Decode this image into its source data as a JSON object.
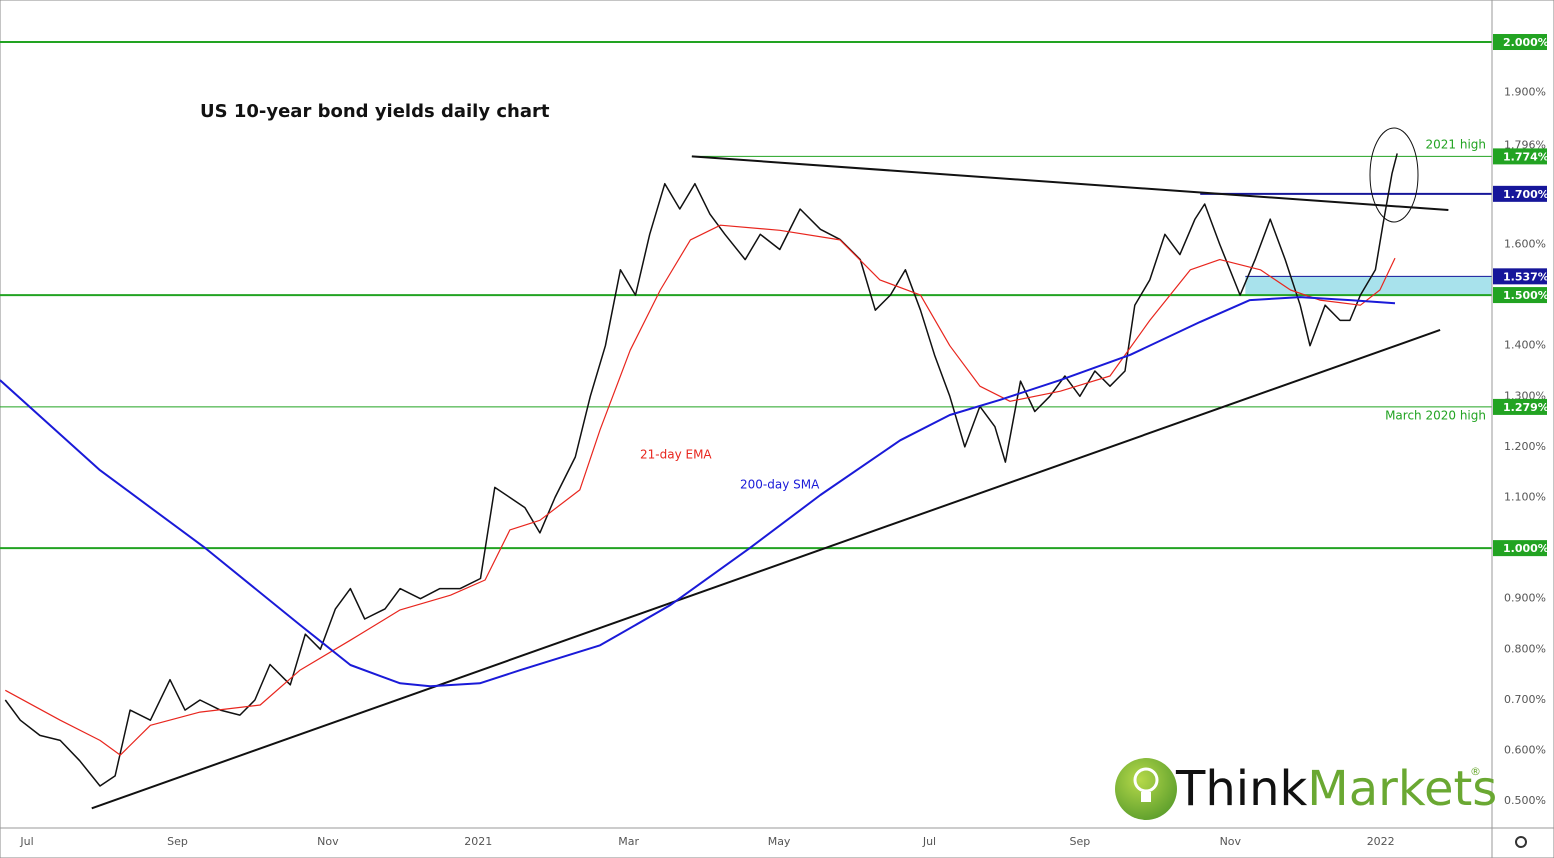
{
  "chart_data": {
    "type": "line",
    "title": "US 10-year bond yields daily chart",
    "xlim": [
      -0.36,
      19.48
    ],
    "xticks": [
      {
        "value": 0,
        "label": "Jul"
      },
      {
        "value": 2,
        "label": "Sep"
      },
      {
        "value": 4,
        "label": "Nov"
      },
      {
        "value": 6,
        "label": "2021"
      },
      {
        "value": 8,
        "label": "Mar"
      },
      {
        "value": 10,
        "label": "May"
      },
      {
        "value": 12,
        "label": "Jul"
      },
      {
        "value": 14,
        "label": "Sep"
      },
      {
        "value": 16,
        "label": "Nov"
      },
      {
        "value": 18,
        "label": "2022"
      }
    ],
    "ylim": [
      0.447,
      2.083
    ],
    "yticks": [
      {
        "value": 0.5,
        "label": "0.500%"
      },
      {
        "value": 0.6,
        "label": "0.600%"
      },
      {
        "value": 0.7,
        "label": "0.700%"
      },
      {
        "value": 0.8,
        "label": "0.800%"
      },
      {
        "value": 0.9,
        "label": "0.900%"
      },
      {
        "value": 1.1,
        "label": "1.100%"
      },
      {
        "value": 1.2,
        "label": "1.200%"
      },
      {
        "value": 1.3,
        "label": "1.300%"
      },
      {
        "value": 1.4,
        "label": "1.400%"
      },
      {
        "value": 1.6,
        "label": "1.600%"
      },
      {
        "value": 1.9,
        "label": "1.900%"
      }
    ],
    "last_price": {
      "value": 1.796,
      "label": "1.796%"
    },
    "series": [
      {
        "color": "#111111",
        "x": [
          -0.29,
          -0.09,
          0.17,
          0.44,
          0.7,
          0.97,
          1.17,
          1.37,
          1.64,
          1.9,
          2.1,
          2.3,
          2.57,
          2.83,
          3.03,
          3.23,
          3.5,
          3.7,
          3.9,
          4.1,
          4.3,
          4.49,
          4.76,
          4.96,
          5.23,
          5.49,
          5.76,
          6.03,
          6.22,
          6.42,
          6.62,
          6.82,
          7.02,
          7.29,
          7.49,
          7.69,
          7.89,
          8.09,
          8.28,
          8.48,
          8.68,
          8.88,
          9.08,
          9.28,
          9.55,
          9.75,
          10.01,
          10.28,
          10.55,
          10.81,
          11.08,
          11.28,
          11.48,
          11.68,
          11.88,
          12.07,
          12.27,
          12.47,
          12.67,
          12.87,
          13.01,
          13.21,
          13.4,
          13.6,
          13.8,
          14.0,
          14.2,
          14.4,
          14.6,
          14.73,
          14.93,
          15.13,
          15.33,
          15.53,
          15.66,
          15.86,
          16.13,
          16.33,
          16.53,
          16.73,
          16.93,
          17.06,
          17.26,
          17.46,
          17.59,
          17.73,
          17.93,
          18.03,
          18.15,
          18.22
        ],
        "values": [
          0.7,
          0.66,
          0.63,
          0.62,
          0.58,
          0.53,
          0.55,
          0.68,
          0.66,
          0.74,
          0.68,
          0.7,
          0.68,
          0.67,
          0.7,
          0.77,
          0.73,
          0.83,
          0.8,
          0.88,
          0.92,
          0.86,
          0.88,
          0.92,
          0.9,
          0.92,
          0.92,
          0.94,
          1.12,
          1.1,
          1.08,
          1.03,
          1.1,
          1.18,
          1.3,
          1.4,
          1.55,
          1.5,
          1.62,
          1.72,
          1.67,
          1.72,
          1.66,
          1.62,
          1.57,
          1.62,
          1.59,
          1.67,
          1.63,
          1.61,
          1.57,
          1.47,
          1.5,
          1.55,
          1.47,
          1.38,
          1.3,
          1.2,
          1.28,
          1.24,
          1.17,
          1.33,
          1.27,
          1.3,
          1.34,
          1.3,
          1.35,
          1.32,
          1.35,
          1.48,
          1.53,
          1.62,
          1.58,
          1.65,
          1.68,
          1.6,
          1.5,
          1.57,
          1.65,
          1.57,
          1.48,
          1.4,
          1.48,
          1.45,
          1.45,
          1.5,
          1.55,
          1.64,
          1.74,
          1.78
        ]
      },
      {
        "name": "21-day EMA",
        "color": "#e8261e",
        "x": [
          -0.29,
          0.44,
          0.97,
          1.24,
          1.64,
          2.3,
          3.1,
          3.63,
          4.3,
          4.96,
          5.63,
          6.09,
          6.42,
          6.82,
          7.35,
          7.62,
          8.02,
          8.42,
          8.82,
          9.22,
          10.01,
          10.81,
          11.34,
          11.88,
          12.27,
          12.67,
          13.07,
          13.74,
          14.4,
          14.93,
          15.47,
          15.86,
          16.4,
          16.8,
          17.19,
          17.73,
          17.99,
          18.19
        ],
        "values": [
          0.719,
          0.66,
          0.62,
          0.591,
          0.65,
          0.676,
          0.69,
          0.759,
          0.818,
          0.878,
          0.907,
          0.937,
          1.036,
          1.055,
          1.115,
          1.234,
          1.391,
          1.51,
          1.609,
          1.638,
          1.628,
          1.609,
          1.53,
          1.5,
          1.4,
          1.32,
          1.29,
          1.31,
          1.34,
          1.45,
          1.55,
          1.57,
          1.55,
          1.51,
          1.49,
          1.48,
          1.51,
          1.573
        ]
      },
      {
        "name": "200-day SMA",
        "color": "#1a1ad8",
        "x": [
          -0.36,
          0.97,
          2.37,
          3.63,
          4.3,
          4.96,
          5.36,
          6.02,
          6.56,
          7.62,
          8.55,
          9.61,
          10.55,
          11.61,
          12.27,
          12.94,
          13.74,
          14.67,
          15.6,
          16.26,
          16.93,
          17.59,
          18.19
        ],
        "values": [
          1.332,
          1.154,
          1.0,
          0.848,
          0.769,
          0.733,
          0.727,
          0.733,
          0.759,
          0.808,
          0.887,
          1.0,
          1.105,
          1.213,
          1.263,
          1.293,
          1.332,
          1.382,
          1.447,
          1.49,
          1.496,
          1.49,
          1.484
        ]
      }
    ],
    "levels": [
      {
        "value": 2.0,
        "label": "2.000%",
        "color": "#22a322",
        "x_start": -0.36,
        "weight": "bold"
      },
      {
        "value": 1.774,
        "label": "1.774%",
        "color": "#22a322",
        "x_start": 8.84,
        "weight": "thin"
      },
      {
        "value": 1.7,
        "label": "1.700%",
        "color": "#16169a",
        "x_start": 15.6,
        "weight": "bold"
      },
      {
        "value": 1.537,
        "label": "1.537%",
        "color": "#16169a",
        "x_start": 16.2,
        "weight": "thin"
      },
      {
        "value": 1.5,
        "label": "1.500%",
        "color": "#22a322",
        "x_start": -0.36,
        "weight": "bold"
      },
      {
        "value": 1.279,
        "label": "1.279%",
        "color": "#22a322",
        "x_start": -0.36,
        "weight": "thin"
      },
      {
        "value": 1.0,
        "label": "1.000%",
        "color": "#22a322",
        "x_start": -0.36,
        "weight": "bold"
      }
    ],
    "zone": {
      "from": 1.5,
      "to": 1.537,
      "x_start": 16.2,
      "color": "#a8e2ec"
    },
    "trendlines": [
      {
        "x": [
          8.84,
          18.9
        ],
        "values": [
          1.774,
          1.668
        ]
      },
      {
        "x": [
          0.86,
          18.79
        ],
        "values": [
          0.486,
          1.431
        ]
      }
    ],
    "annotations": {
      "high_2021": "2021 high",
      "high_march_2020": "March 2020 high"
    },
    "logo": {
      "part1": "Think",
      "part2": "Markets",
      "mark": "®"
    }
  }
}
